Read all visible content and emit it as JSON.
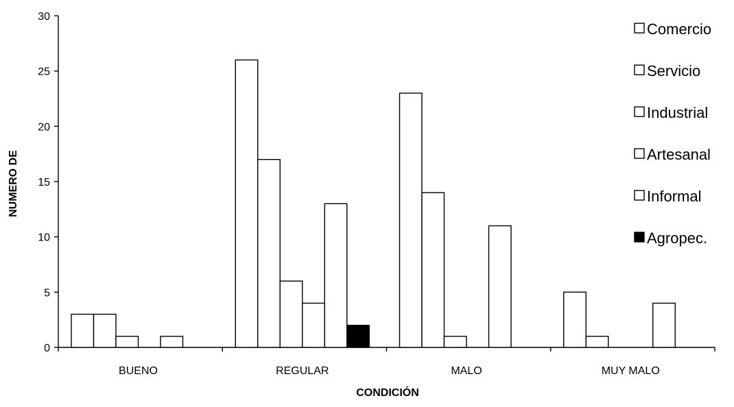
{
  "chart_data": {
    "type": "bar",
    "xlabel": "CONDICIÓN",
    "ylabel": "NUMERO DE",
    "ylim": [
      0,
      30
    ],
    "yticks": [
      0,
      5,
      10,
      15,
      20,
      25,
      30
    ],
    "grid": false,
    "legend_position": "right",
    "categories": [
      "BUENO",
      "REGULAR",
      "MALO",
      "MUY MALO"
    ],
    "series": [
      {
        "name": "Comercio",
        "color": "#ffffff",
        "values": [
          3,
          26,
          23,
          5
        ]
      },
      {
        "name": "Servicio",
        "color": "#ffffff",
        "values": [
          3,
          17,
          14,
          1
        ]
      },
      {
        "name": "Industrial",
        "color": "#ffffff",
        "values": [
          1,
          6,
          1,
          0
        ]
      },
      {
        "name": "Artesanal",
        "color": "#ffffff",
        "values": [
          0,
          4,
          0,
          0
        ]
      },
      {
        "name": "Informal",
        "color": "#ffffff",
        "values": [
          1,
          13,
          11,
          4
        ]
      },
      {
        "name": "Agropec.",
        "color": "#000000",
        "values": [
          0,
          2,
          0,
          0
        ]
      }
    ]
  }
}
